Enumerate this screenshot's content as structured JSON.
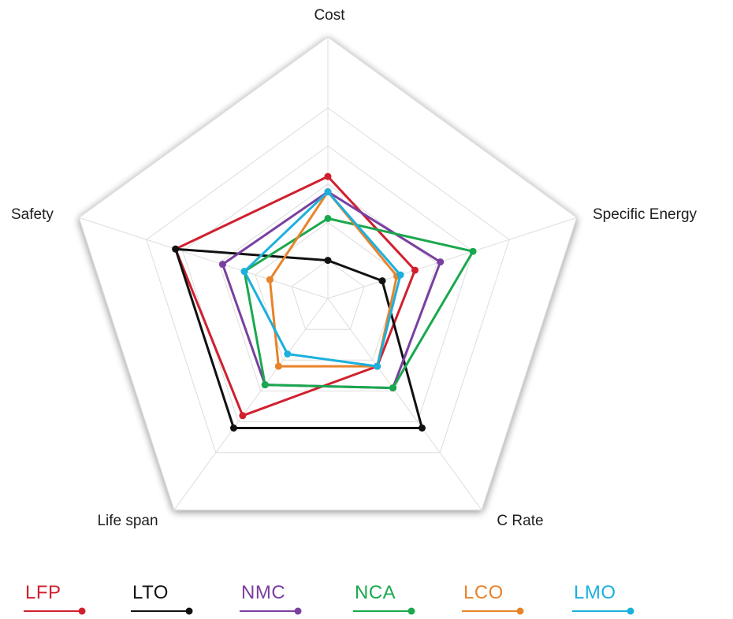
{
  "chart_data": {
    "type": "radar",
    "axes": [
      "Cost",
      "Specific Energy",
      "C Rate",
      "Life span",
      "Safety"
    ],
    "scale": {
      "min": 0,
      "max": 5,
      "rings": 5
    },
    "grid": true,
    "legend_position": "bottom",
    "series": [
      {
        "name": "LFP",
        "color": "#d0202e",
        "values": [
          3.2,
          2.4,
          2.2,
          3.8,
          4.2
        ]
      },
      {
        "name": "LTO",
        "color": "#111111",
        "values": [
          1.0,
          1.5,
          4.2,
          4.2,
          4.2
        ]
      },
      {
        "name": "NMC",
        "color": "#7a3fa0",
        "values": [
          2.8,
          3.1,
          2.9,
          2.8,
          2.9
        ]
      },
      {
        "name": "NCA",
        "color": "#1aa84e",
        "values": [
          2.1,
          4.0,
          2.9,
          2.8,
          2.3
        ]
      },
      {
        "name": "LCO",
        "color": "#e8832a",
        "values": [
          2.8,
          1.9,
          2.2,
          2.2,
          1.6
        ]
      },
      {
        "name": "LMO",
        "color": "#1bb0de",
        "values": [
          2.8,
          2.0,
          2.2,
          1.8,
          2.3
        ]
      }
    ]
  }
}
